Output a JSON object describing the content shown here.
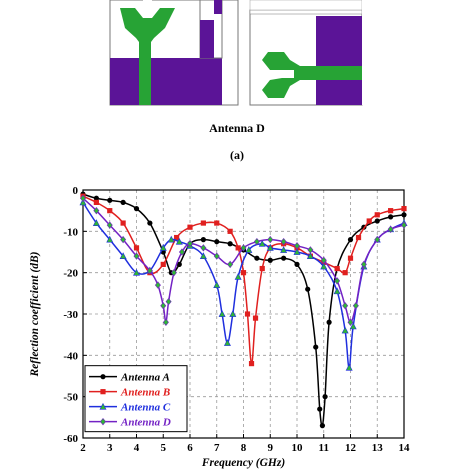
{
  "figure": {
    "caption_title": "Antenna D",
    "caption_label": "(a)",
    "colors": {
      "ground_plane": "#5b1497",
      "antenna_trace": "#27a335",
      "panel_border": "#777777"
    }
  },
  "chart_data": {
    "type": "line",
    "xlabel": "Frequency (GHz)",
    "ylabel": "Reflection coefficient (dB)",
    "xlim": [
      2,
      14
    ],
    "ylim": [
      -60,
      0
    ],
    "xticks": [
      2,
      3,
      4,
      5,
      6,
      7,
      8,
      9,
      10,
      11,
      12,
      13,
      14
    ],
    "yticks": [
      0,
      -10,
      -20,
      -30,
      -40,
      -50,
      -60
    ],
    "grid": true,
    "legend_position": "bottom-left",
    "series": [
      {
        "name": "Antenna A",
        "color": "#000000",
        "marker": "circle",
        "x": [
          2,
          2.5,
          3,
          3.5,
          4,
          4.5,
          5,
          5.3,
          5.6,
          6,
          6.5,
          7,
          7.5,
          8,
          8.5,
          9,
          9.5,
          10,
          10.4,
          10.7,
          10.85,
          10.95,
          11.05,
          11.2,
          11.5,
          12,
          12.5,
          13,
          13.5,
          14
        ],
        "y": [
          -1,
          -2,
          -2.5,
          -3,
          -4.5,
          -8,
          -15,
          -20,
          -18,
          -13,
          -12,
          -12.5,
          -13,
          -14.5,
          -16.5,
          -17,
          -16.5,
          -18,
          -24,
          -38,
          -53,
          -57,
          -50,
          -32,
          -19,
          -12,
          -9,
          -7.5,
          -6.5,
          -6
        ]
      },
      {
        "name": "Antenna B",
        "color": "#e0201f",
        "marker": "square",
        "x": [
          2,
          2.5,
          3,
          3.5,
          4,
          4.5,
          5,
          5.5,
          6,
          6.5,
          7,
          7.5,
          7.8,
          8,
          8.15,
          8.3,
          8.45,
          8.7,
          9,
          9.5,
          10,
          10.5,
          11,
          11.5,
          11.8,
          12,
          12.3,
          12.7,
          13,
          13.5,
          14
        ],
        "y": [
          -1.5,
          -3,
          -5,
          -8,
          -14,
          -20,
          -18,
          -11.5,
          -9,
          -8,
          -8,
          -10,
          -14,
          -20,
          -30,
          -42,
          -31,
          -19,
          -14,
          -13,
          -14,
          -16,
          -17.5,
          -19,
          -20,
          -16.5,
          -11.5,
          -7.5,
          -6,
          -5,
          -4.5
        ]
      },
      {
        "name": "Antenna C",
        "color": "#1f2fde",
        "marker": "triangle",
        "x": [
          2,
          2.5,
          3,
          3.5,
          4,
          4.5,
          5,
          5.3,
          5.6,
          6,
          6.5,
          7,
          7.2,
          7.4,
          7.6,
          7.8,
          8.2,
          8.7,
          9,
          9.5,
          10,
          10.5,
          11,
          11.5,
          11.8,
          11.95,
          12.1,
          12.5,
          13,
          13.5,
          14
        ],
        "y": [
          -3,
          -8,
          -12,
          -16,
          -20,
          -19.5,
          -14,
          -12,
          -12.5,
          -13.5,
          -16,
          -23,
          -30,
          -37,
          -30,
          -21,
          -14.5,
          -13,
          -14,
          -14.5,
          -15,
          -16,
          -18.5,
          -24.5,
          -34,
          -43,
          -33,
          -18.5,
          -12,
          -9.5,
          -8
        ]
      },
      {
        "name": "Antenna D",
        "color": "#7322c4",
        "marker": "diamond",
        "x": [
          2,
          2.5,
          3,
          3.5,
          4,
          4.5,
          4.8,
          5,
          5.1,
          5.2,
          5.4,
          5.7,
          6,
          6.5,
          7,
          7.5,
          8,
          8.5,
          9,
          9.5,
          10,
          10.5,
          11,
          11.5,
          11.8,
          12,
          12.2,
          12.5,
          13,
          13.5,
          14
        ],
        "y": [
          -2,
          -5,
          -8.5,
          -12,
          -16,
          -19.5,
          -23,
          -28,
          -32,
          -27,
          -20,
          -15,
          -13,
          -14,
          -16,
          -18,
          -14,
          -12.5,
          -12,
          -12.5,
          -13.5,
          -14.5,
          -17,
          -22,
          -28,
          -32,
          -28,
          -18,
          -12,
          -9.5,
          -8.5
        ]
      }
    ]
  }
}
